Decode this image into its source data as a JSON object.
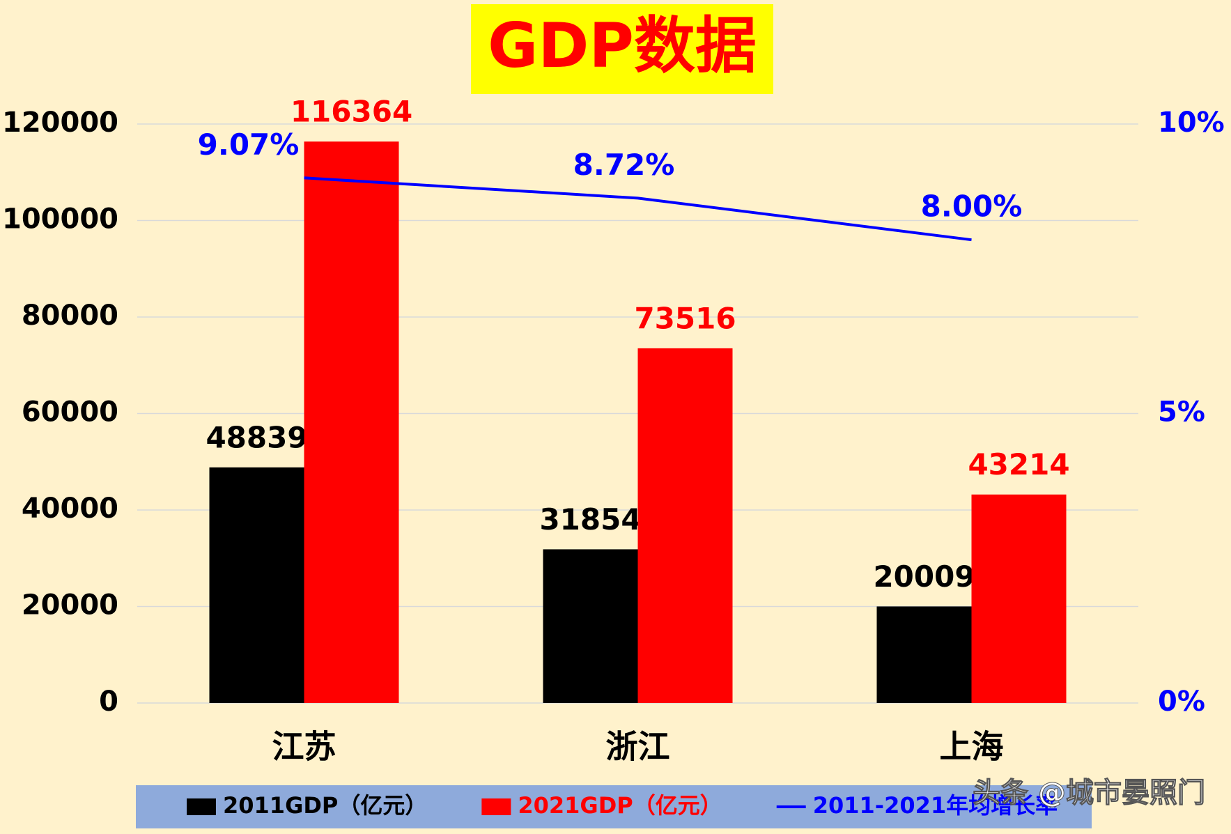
{
  "chart_data": {
    "type": "bar",
    "title": "GDP数据",
    "categories": [
      "江苏",
      "浙江",
      "上海"
    ],
    "series": [
      {
        "name": "2011GDP（亿元）",
        "color": "#000000",
        "type": "bar",
        "values": [
          48839,
          31854,
          20009
        ]
      },
      {
        "name": "2021GDP（亿元）",
        "color": "#ff0000",
        "type": "bar",
        "values": [
          116364,
          73516,
          43214
        ]
      },
      {
        "name": "2011-2021年均增长率",
        "color": "#0000ff",
        "type": "line",
        "axis": "y2",
        "values": [
          9.07,
          8.72,
          8.0
        ],
        "value_labels": [
          "9.07%",
          "8.72%",
          "8.00%"
        ]
      }
    ],
    "ylim": [
      0,
      120000
    ],
    "yticks": [
      0,
      20000,
      40000,
      60000,
      80000,
      100000,
      120000
    ],
    "y2lim": [
      0,
      10
    ],
    "y2ticks": [
      {
        "value": 0,
        "label": "0%"
      },
      {
        "value": 5,
        "label": "5%"
      },
      {
        "value": 10,
        "label": "10%"
      }
    ],
    "grid": true,
    "legend": "bottom",
    "watermark": "头条 @城市晏照门"
  }
}
